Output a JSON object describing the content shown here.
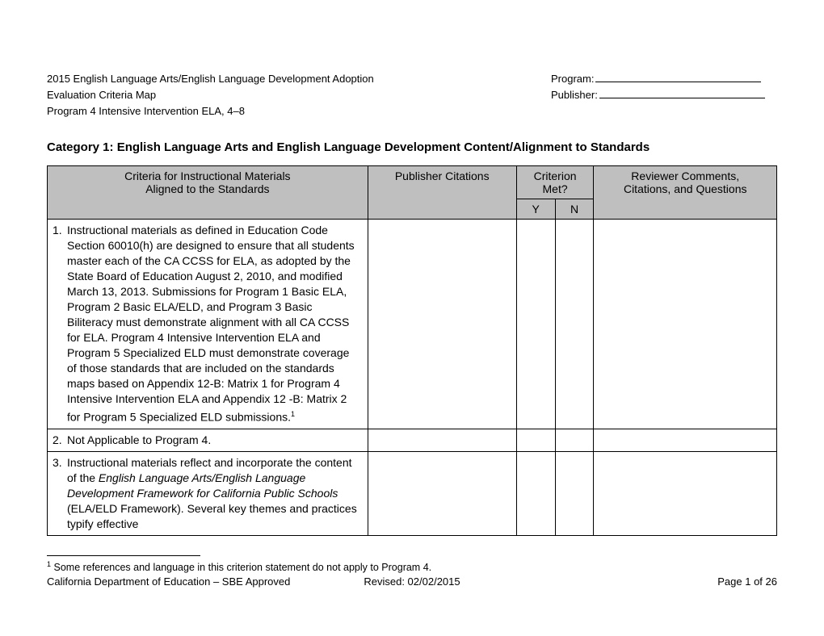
{
  "colors": {
    "header_bg": "#bfbfbf",
    "border": "#000000",
    "text": "#000000",
    "page_bg": "#ffffff"
  },
  "header": {
    "line1_left": "2015 English Language Arts/English Language Development Adoption",
    "line1_right_label": "Program:",
    "line2_left": "Evaluation Criteria Map",
    "line2_right_label": "Publisher:",
    "line3_left": "Program 4 Intensive Intervention ELA, 4–8"
  },
  "category_title": "Category 1:  English Language Arts and English Language Development Content/Alignment to Standards",
  "table": {
    "head": {
      "criteria_line1": "Criteria for Instructional Materials",
      "criteria_line2": "Aligned to the Standards",
      "publisher": "Publisher Citations",
      "criterion_met": "Criterion Met?",
      "y": "Y",
      "n": "N",
      "reviewer_line1": "Reviewer Comments,",
      "reviewer_line2": "Citations, and Questions"
    },
    "rows": [
      {
        "num": "1.",
        "text_a": "Instructional materials as defined in Education Code Section 60010(h) are designed to ensure that all students master each of the CA CCSS for ELA, as adopted by the State Board of Education August 2, 2010, and modified March 13, 2013. Submissions for Program 1 Basic ELA, Program 2 Basic ELA/ELD, and Program 3 Basic Biliteracy must demonstrate alignment with all CA CCSS for ELA. Program 4 Intensive Intervention ELA and Program 5 Specialized ELD must demonstrate coverage of those standards that are included on the standards maps based on Appendix 12-B: Matrix 1 for Program 4 Intensive Intervention ELA and Appendix 12 -B: Matrix 2 for Program 5 Specialized ELD submissions.",
        "sup": "1"
      },
      {
        "num": "2.",
        "text_a": "Not Applicable to Program 4."
      },
      {
        "num": "3.",
        "text_a": "Instructional materials reflect and incorporate the content of the ",
        "italic": "English Language Arts/English Language Development Framework for California Public Schools",
        "text_b": " (ELA/ELD Framework). Several key themes and practices typify effective"
      }
    ]
  },
  "footnote": {
    "marker": "1",
    "text": " Some references and language in this criterion statement do not apply to Program 4."
  },
  "footer": {
    "left": "California Department of Education – SBE Approved",
    "mid": "Revised: 02/02/2015",
    "right": "Page 1 of 26"
  }
}
